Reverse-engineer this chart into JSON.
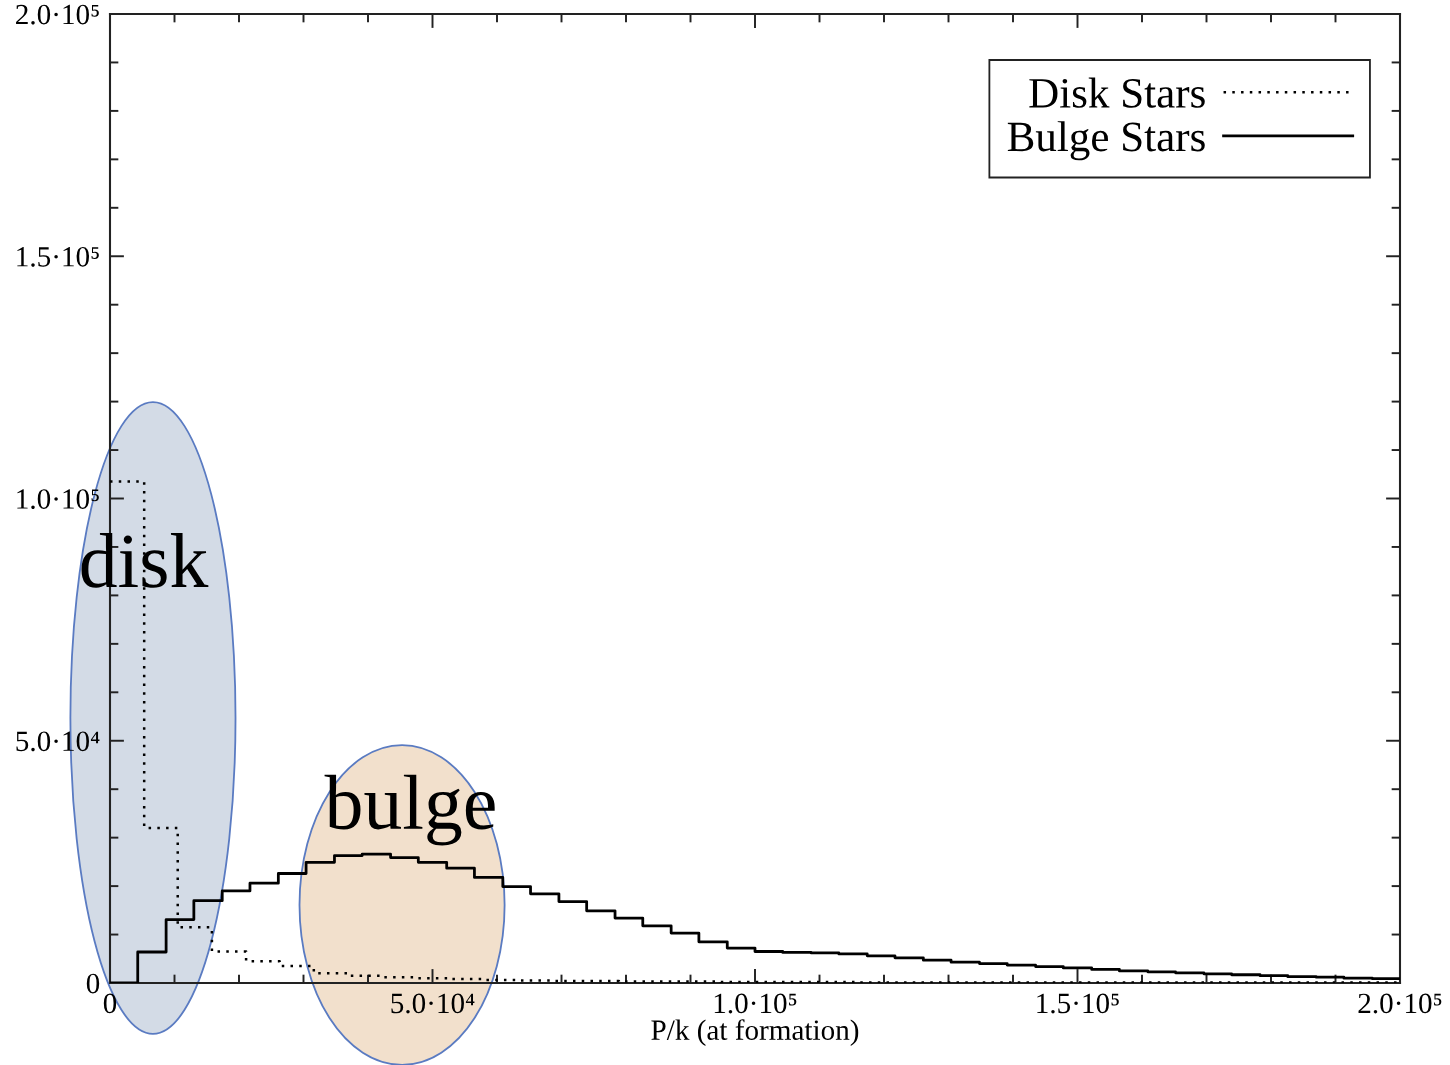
{
  "chart_data": {
    "type": "step",
    "xlabel": "P/k (at formation)",
    "xlim": [
      0,
      200000
    ],
    "ylim": [
      0,
      200000
    ],
    "xticks": [
      {
        "value": 0,
        "label": "0"
      },
      {
        "value": 10000,
        "label": null
      },
      {
        "value": 20000,
        "label": null
      },
      {
        "value": 30000,
        "label": null
      },
      {
        "value": 40000,
        "label": null
      },
      {
        "value": 50000,
        "label": "5.0·10⁴"
      },
      {
        "value": 60000,
        "label": null
      },
      {
        "value": 70000,
        "label": null
      },
      {
        "value": 80000,
        "label": null
      },
      {
        "value": 90000,
        "label": null
      },
      {
        "value": 100000,
        "label": "1.0·10⁵"
      },
      {
        "value": 110000,
        "label": null
      },
      {
        "value": 120000,
        "label": null
      },
      {
        "value": 130000,
        "label": null
      },
      {
        "value": 140000,
        "label": null
      },
      {
        "value": 150000,
        "label": "1.5·10⁵"
      },
      {
        "value": 160000,
        "label": null
      },
      {
        "value": 170000,
        "label": null
      },
      {
        "value": 180000,
        "label": null
      },
      {
        "value": 190000,
        "label": null
      },
      {
        "value": 200000,
        "label": "2.0·10⁵"
      }
    ],
    "yticks": [
      {
        "value": 0,
        "label": "0"
      },
      {
        "value": 10000,
        "label": null
      },
      {
        "value": 20000,
        "label": null
      },
      {
        "value": 30000,
        "label": null
      },
      {
        "value": 40000,
        "label": null
      },
      {
        "value": 50000,
        "label": "5.0·10⁴"
      },
      {
        "value": 60000,
        "label": null
      },
      {
        "value": 70000,
        "label": null
      },
      {
        "value": 80000,
        "label": null
      },
      {
        "value": 90000,
        "label": null
      },
      {
        "value": 100000,
        "label": "1.0·10⁵"
      },
      {
        "value": 110000,
        "label": null
      },
      {
        "value": 120000,
        "label": null
      },
      {
        "value": 130000,
        "label": null
      },
      {
        "value": 140000,
        "label": null
      },
      {
        "value": 150000,
        "label": "1.5·10⁵"
      },
      {
        "value": 160000,
        "label": null
      },
      {
        "value": 170000,
        "label": null
      },
      {
        "value": 180000,
        "label": null
      },
      {
        "value": 190000,
        "label": null
      },
      {
        "value": 200000,
        "label": "2.0·10⁵"
      }
    ],
    "series": [
      {
        "name": "Disk Stars",
        "color": "#000000",
        "line_style": "dotted",
        "x": [
          0,
          5300,
          10500,
          15800,
          21100,
          26300,
          31600,
          36800,
          42100,
          47400,
          52600,
          57900,
          63200,
          68400,
          73700,
          78900,
          84200,
          89500,
          94700,
          100000,
          105300,
          110500,
          115800,
          121100,
          126300,
          131600,
          136800,
          142100,
          147400,
          152600,
          157900,
          163200,
          168400,
          173700,
          178900,
          184200,
          189500,
          194700,
          200000
        ],
        "values": [
          103500,
          32000,
          11500,
          6500,
          4500,
          3500,
          2000,
          1500,
          1200,
          1000,
          800,
          600,
          500,
          400,
          400,
          300,
          300,
          300,
          200,
          200,
          200,
          200,
          100,
          100,
          100,
          100,
          100,
          100,
          100,
          100,
          100,
          100,
          100,
          100,
          100,
          100,
          100,
          100,
          100
        ]
      },
      {
        "name": "Bulge Stars",
        "color": "#000000",
        "line_style": "solid",
        "x": [
          0,
          4300,
          8700,
          13000,
          17400,
          21700,
          26100,
          30400,
          34800,
          39100,
          43500,
          47800,
          52200,
          56500,
          60900,
          65200,
          69600,
          73900,
          78300,
          82600,
          87000,
          91300,
          95700,
          100000,
          104300,
          108700,
          113000,
          117400,
          121700,
          126100,
          130400,
          134800,
          139100,
          143500,
          147800,
          152200,
          156500,
          160900,
          165200,
          169600,
          173900,
          178300,
          182600,
          187000,
          191300,
          195700,
          200000
        ],
        "values": [
          0,
          6400,
          13100,
          17000,
          19000,
          20600,
          22600,
          24900,
          26300,
          26600,
          25900,
          24900,
          23700,
          21800,
          19900,
          18400,
          16800,
          14900,
          13400,
          11800,
          10300,
          8500,
          7200,
          6500,
          6300,
          6200,
          6000,
          5600,
          5200,
          4700,
          4300,
          4000,
          3700,
          3400,
          3100,
          2800,
          2500,
          2300,
          2100,
          1900,
          1700,
          1500,
          1300,
          1200,
          1000,
          900,
          900
        ]
      }
    ],
    "annotations": [
      "disk",
      "bulge"
    ],
    "legend": "top right"
  }
}
